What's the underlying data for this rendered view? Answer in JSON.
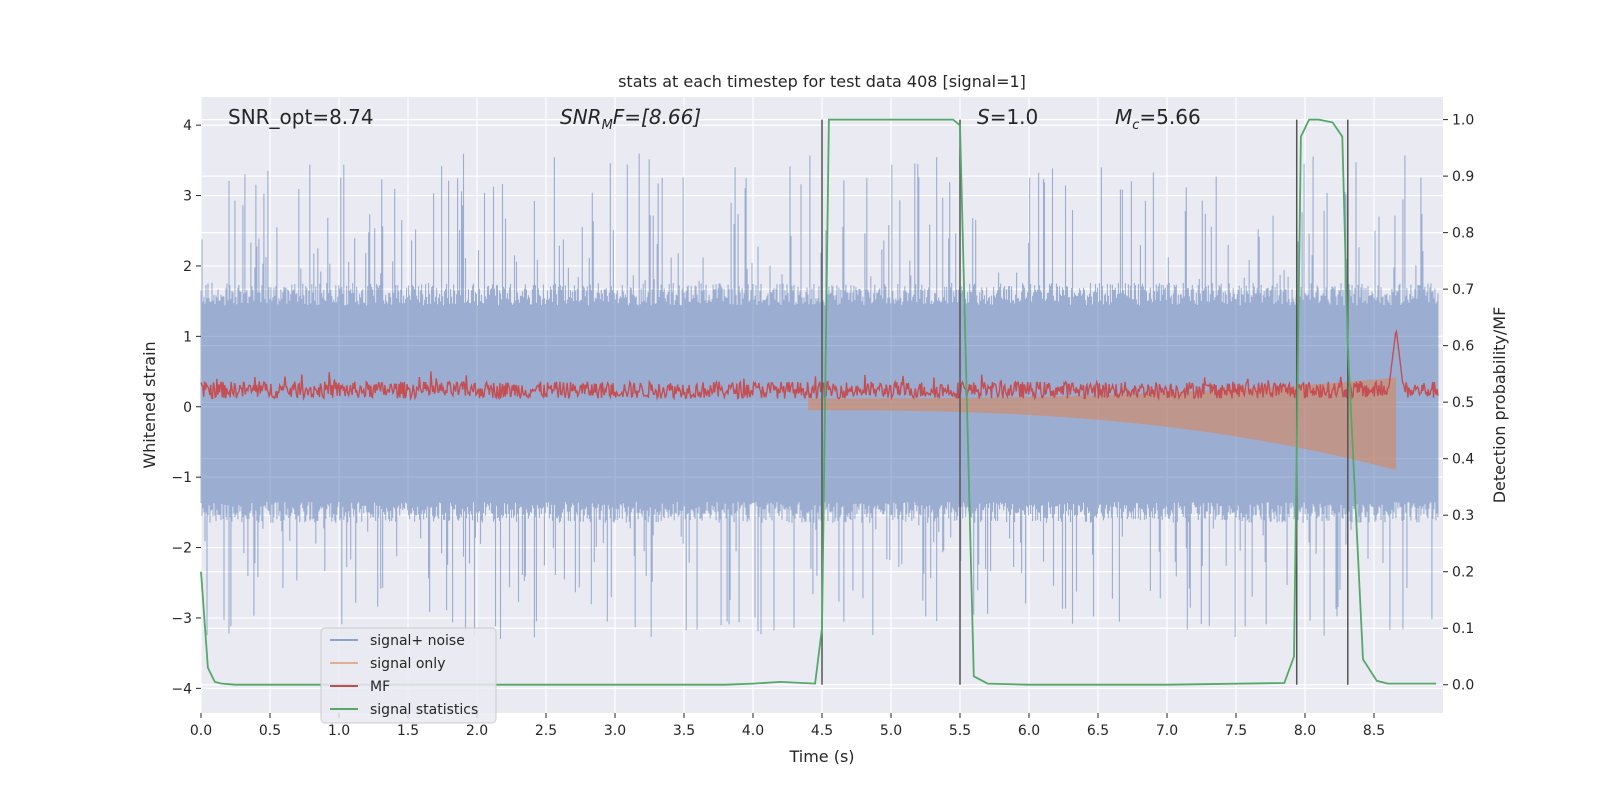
{
  "chart_data": {
    "type": "line",
    "title": "stats at each timestep for test data 408 [signal=1]",
    "xlabel": "Time (s)",
    "ylabel": "Whitened strain",
    "ylabel_right": "Detection probability/MF",
    "xlim": [
      0.0,
      9.0
    ],
    "ylim": [
      -4.35,
      4.4
    ],
    "ylim_right": [
      -0.05,
      1.04
    ],
    "x_ticks": [
      0.0,
      0.5,
      1.0,
      1.5,
      2.0,
      2.5,
      3.0,
      3.5,
      4.0,
      4.5,
      5.0,
      5.5,
      6.0,
      6.5,
      7.0,
      7.5,
      8.0,
      8.5
    ],
    "x_tick_labels": [
      "0.0",
      "0.5",
      "1.0",
      "1.5",
      "2.0",
      "2.5",
      "3.0",
      "3.5",
      "4.0",
      "4.5",
      "5.0",
      "5.5",
      "6.0",
      "6.5",
      "7.0",
      "7.5",
      "8.0",
      "8.5"
    ],
    "y_ticks": [
      4,
      3,
      2,
      1,
      0,
      -1,
      -2,
      -3,
      -4
    ],
    "y_tick_labels": [
      "4",
      "3",
      "2",
      "1",
      "0",
      "−1",
      "−2",
      "−3",
      "−4"
    ],
    "y_right_ticks": [
      1.0,
      0.9,
      0.8,
      0.7,
      0.6,
      0.5,
      0.4,
      0.3,
      0.2,
      0.1,
      0.0
    ],
    "y_right_tick_labels": [
      "1.0",
      "0.9",
      "0.8",
      "0.7",
      "0.6",
      "0.5",
      "0.4",
      "0.3",
      "0.2",
      "0.1",
      "0.0"
    ],
    "grid": true,
    "legend_position": "bottom-left",
    "annotations": {
      "snr_opt": "SNR_opt=8.74",
      "snr_mf_main": "SNR",
      "snr_mf_sub": "M",
      "snr_mf_rest": "F=[8.66]",
      "s_main": "S",
      "s_rest": "=1.0",
      "mc_main": "M",
      "mc_sub": "c",
      "mc_rest": "=5.66"
    },
    "vertical_lines_x": [
      4.5,
      5.5,
      7.94,
      8.31
    ],
    "series": [
      {
        "name": "signal+ noise",
        "color": "#4c72b0",
        "axis": "left",
        "description": "whitened strain, noise band approx [-1.5, 1.6] with spikes to +/-3.5",
        "band_low": -1.5,
        "band_high": 1.6
      },
      {
        "name": "signal only",
        "color": "#dd8452",
        "axis": "left",
        "description": "chirp waveform growing from ~0 at t=4.5 to ~0.9 amplitude at t=8.66"
      },
      {
        "name": "MF",
        "color": "#c44e52",
        "axis": "right",
        "base": 0.52,
        "peak_x": 8.66,
        "peak_value": 0.63
      },
      {
        "name": "signal statistics",
        "color": "#55a868",
        "axis": "right",
        "x": [
          0.0,
          0.05,
          0.1,
          0.15,
          0.25,
          0.5,
          1.0,
          2.0,
          3.0,
          3.8,
          4.0,
          4.2,
          4.45,
          4.5,
          4.55,
          4.6,
          5.0,
          5.45,
          5.5,
          5.55,
          5.6,
          5.7,
          6.0,
          7.0,
          7.85,
          7.92,
          7.97,
          8.03,
          8.1,
          8.2,
          8.27,
          8.31,
          8.42,
          8.52,
          8.6,
          8.8,
          8.95
        ],
        "values": [
          0.2,
          0.03,
          0.005,
          0.002,
          0.0,
          0.0,
          0.0,
          0.0,
          0.0,
          0.0,
          0.002,
          0.005,
          0.002,
          0.1,
          1.0,
          1.0,
          1.0,
          1.0,
          0.99,
          0.5,
          0.015,
          0.002,
          0.0,
          0.0,
          0.003,
          0.05,
          0.97,
          1.0,
          1.0,
          0.995,
          0.97,
          0.6,
          0.045,
          0.007,
          0.002,
          0.002,
          0.002
        ]
      }
    ]
  }
}
